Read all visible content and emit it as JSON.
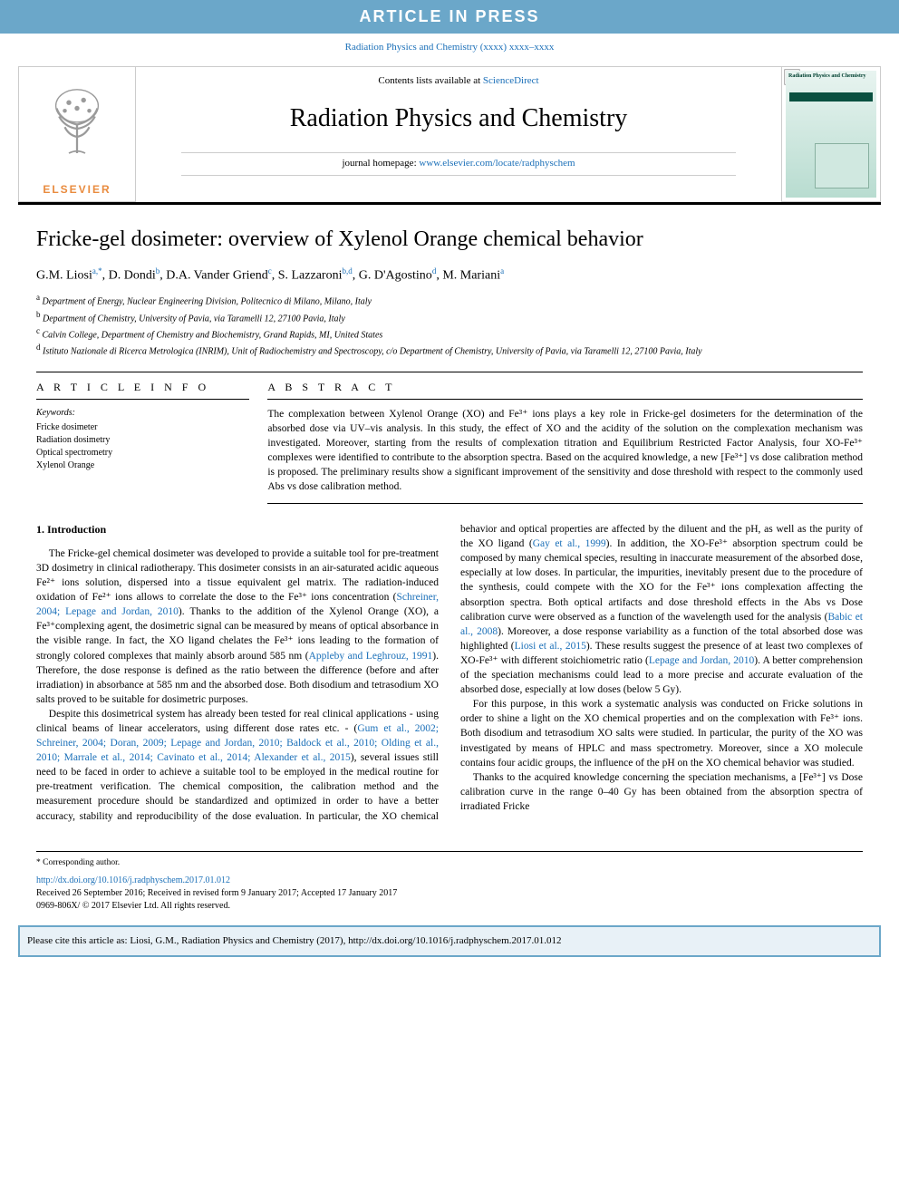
{
  "banner": {
    "text": "ARTICLE IN PRESS",
    "bg": "#6ba7c9",
    "fg": "#ffffff"
  },
  "journal_ref": {
    "text": "Radiation Physics and Chemistry (xxxx) xxxx–xxxx"
  },
  "masthead": {
    "contents_prefix": "Contents lists available at ",
    "contents_link": "ScienceDirect",
    "journal_title": "Radiation Physics and Chemistry",
    "homepage_prefix": "journal homepage: ",
    "homepage_link": "www.elsevier.com/locate/radphyschem",
    "publisher_label": "ELSEVIER",
    "publisher_color": "#e98b3e",
    "cover_title": "Radiation Physics and Chemistry"
  },
  "article": {
    "title": "Fricke-gel dosimeter: overview of Xylenol Orange chemical behavior",
    "authors_html": "G.M. Liosi|a,*|, D. Dondi|b|, D.A. Vander Griend|c|, S. Lazzaroni|b,d|, G. D'Agostino|d|, M. Mariani|a|",
    "affiliations": [
      {
        "marker": "a",
        "text": "Department of Energy, Nuclear Engineering Division, Politecnico di Milano, Milano, Italy"
      },
      {
        "marker": "b",
        "text": "Department of Chemistry, University of Pavia, via Taramelli 12, 27100 Pavia, Italy"
      },
      {
        "marker": "c",
        "text": "Calvin College, Department of Chemistry and Biochemistry, Grand Rapids, MI, United States"
      },
      {
        "marker": "d",
        "text": "Istituto Nazionale di Ricerca Metrologica (INRIM), Unit of Radiochemistry and Spectroscopy, c/o Department of Chemistry, University of Pavia, via Taramelli 12, 27100 Pavia, Italy"
      }
    ]
  },
  "info": {
    "heading": "A R T I C L E  I N F O",
    "kw_label": "Keywords:",
    "keywords": [
      "Fricke dosimeter",
      "Radiation dosimetry",
      "Optical spectrometry",
      "Xylenol Orange"
    ]
  },
  "abstract": {
    "heading": "A B S T R A C T",
    "text": "The complexation between Xylenol Orange (XO) and Fe³⁺ ions plays a key role in Fricke-gel dosimeters for the determination of the absorbed dose via UV–vis analysis. In this study, the effect of XO and the acidity of the solution on the complexation mechanism was investigated. Moreover, starting from the results of complexation titration and Equilibrium Restricted Factor Analysis, four XO-Fe³⁺ complexes were identified to contribute to the absorption spectra. Based on the acquired knowledge, a new [Fe³⁺] vs dose calibration method is proposed. The preliminary results show a significant improvement of the sensitivity and dose threshold with respect to the commonly used Abs vs dose calibration method."
  },
  "section1": {
    "heading": "1. Introduction",
    "p1": "The Fricke-gel chemical dosimeter was developed to provide a suitable tool for pre-treatment 3D dosimetry in clinical radiotherapy. This dosimeter consists in an air-saturated acidic aqueous Fe²⁺ ions solution, dispersed into a tissue equivalent gel matrix. The radiation-induced oxidation of Fe²⁺ ions allows to correlate the dose to the Fe³⁺ ions concentration (",
    "p1_ref1": "Schreiner, 2004; Lepage and Jordan, 2010",
    "p1b": "). Thanks to the addition of the Xylenol Orange (XO), a Fe³⁺complexing agent, the dosimetric signal can be measured by means of optical absorbance in the visible range. In fact, the XO ligand chelates the Fe³⁺ ions leading to the formation of strongly colored complexes that mainly absorb around 585 nm (",
    "p1_ref2": "Appleby and Leghrouz, 1991",
    "p1c": "). Therefore, the dose response is defined as the ratio between the difference (before and after irradiation) in absorbance at 585 nm and the absorbed dose. Both disodium and tetrasodium XO salts proved to be suitable for dosimetric purposes.",
    "p2a": "Despite this dosimetrical system has already been tested for real clinical applications - using clinical beams of linear accelerators, using different dose rates etc. - (",
    "p2_refs": "Gum et al., 2002; Schreiner, 2004; Doran, 2009; Lepage and Jordan, 2010; Baldock et al., 2010; Olding et al., 2010; Marrale et al., 2014; Cavinato et al., 2014; Alexander et al., 2015",
    "p2b": "), several issues still need to be faced in order to achieve a suitable tool to be employed in the medical routine for pre-treatment verification. The chemical composition, the calibration method and the measurement procedure should be standardized and optimized in order to have a better accuracy, stability and reproducibility of the dose evaluation. In particular, the XO chemical behavior and optical properties are affected by the diluent and the pH, as well as the purity of the XO ligand (",
    "p2_ref3": "Gay et al., 1999",
    "p2c": "). In addition, the XO-Fe³⁺ absorption spectrum could be composed by many chemical species, resulting in inaccurate measurement of the absorbed dose, especially at low doses. In particular, the impurities, inevitably present due to the procedure of the synthesis, could compete with the XO for the Fe³⁺ ions complexation affecting the absorption spectra. Both optical artifacts and dose threshold effects in the Abs vs Dose calibration curve were observed as a function of the wavelength used for the analysis (",
    "p2_ref4": "Babic et al., 2008",
    "p2d": "). Moreover, a dose response variability as a function of the total absorbed dose was highlighted (",
    "p2_ref5": "Liosi et al., 2015",
    "p2e": "). These results suggest the presence of at least two complexes of XO-Fe³⁺ with different stoichiometric ratio (",
    "p2_ref6": "Lepage and Jordan, 2010",
    "p2f": "). A better comprehension of the speciation mechanisms could lead to a more precise and accurate evaluation of the absorbed dose, especially at low doses (below 5 Gy).",
    "p3": "For this purpose, in this work a systematic analysis was conducted on Fricke solutions in order to shine a light on the XO chemical properties and on the complexation with Fe³⁺ ions. Both disodium and tetrasodium XO salts were studied. In particular, the purity of the XO was investigated by means of HPLC and mass spectrometry. Moreover, since a XO molecule contains four acidic groups, the influence of the pH on the XO chemical behavior was studied.",
    "p4": "Thanks to the acquired knowledge concerning the speciation mechanisms, a [Fe³⁺] vs Dose calibration curve in the range 0–40 Gy has been obtained from the absorption spectra of irradiated Fricke"
  },
  "footer": {
    "corr": "* Corresponding author.",
    "doi": "http://dx.doi.org/10.1016/j.radphyschem.2017.01.012",
    "history": "Received 26 September 2016; Received in revised form 9 January 2017; Accepted 17 January 2017",
    "issn": "0969-806X/ © 2017 Elsevier Ltd. All rights reserved."
  },
  "citebox": {
    "text": "Please cite this article as: Liosi, G.M., Radiation Physics and Chemistry (2017), http://dx.doi.org/10.1016/j.radphyschem.2017.01.012"
  },
  "colors": {
    "link": "#1a6fb8",
    "banner_bg": "#6ba7c9",
    "citebox_bg": "#e8f1f7"
  }
}
